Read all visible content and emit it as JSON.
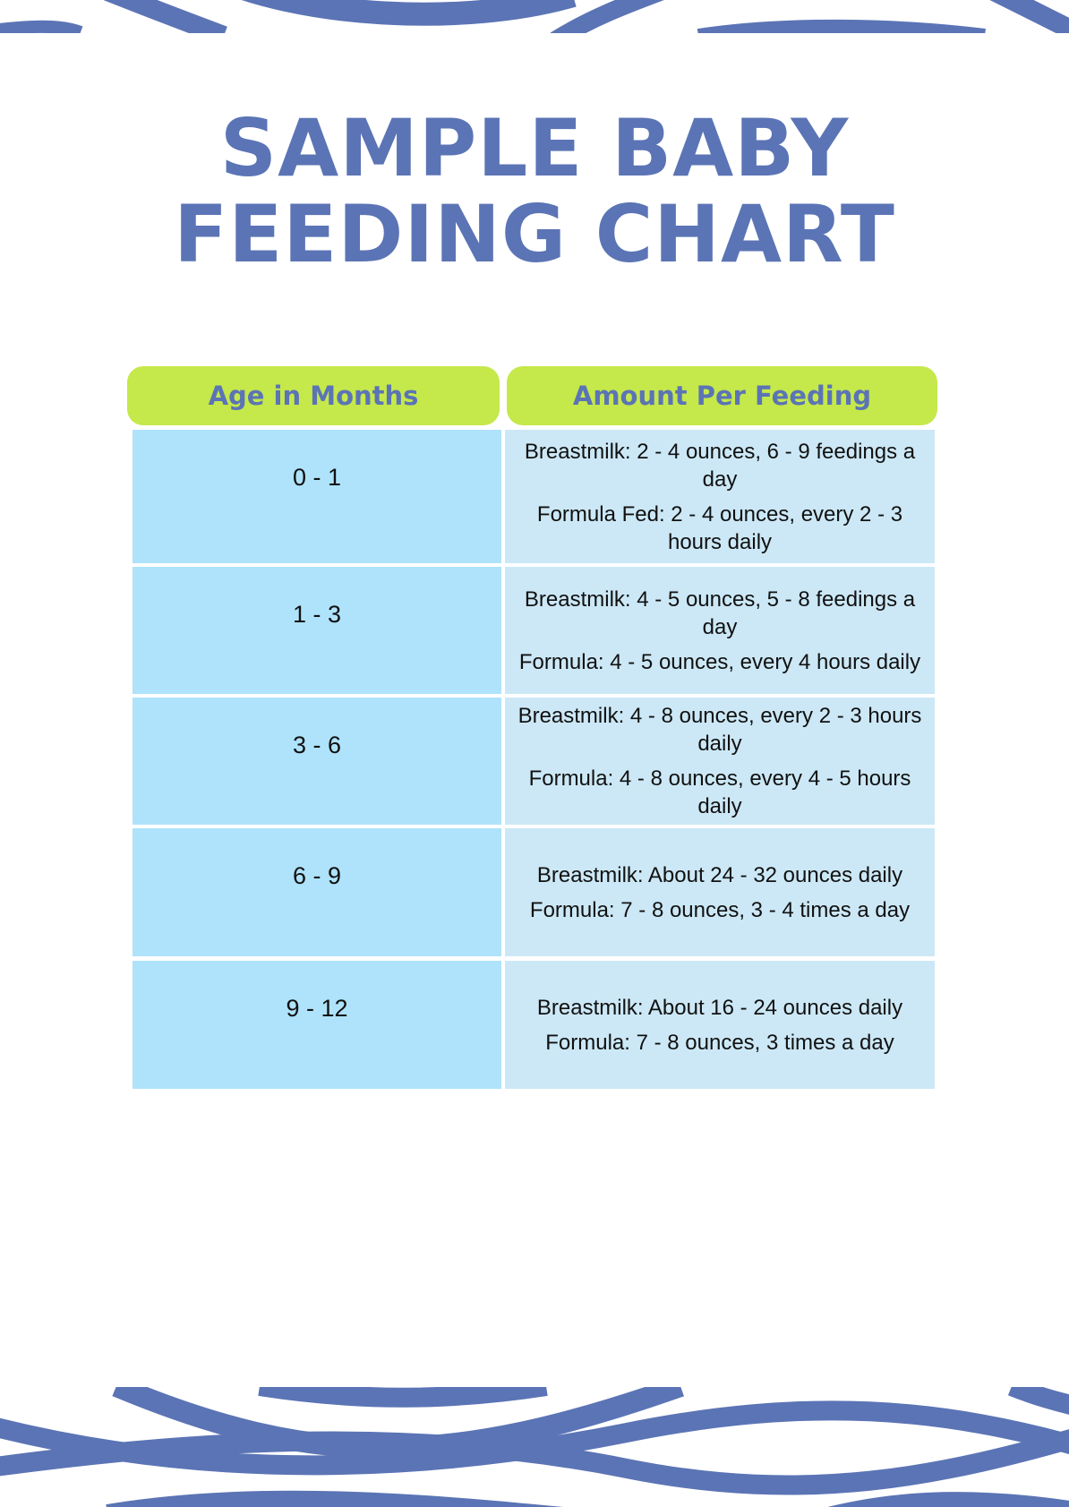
{
  "header": {
    "title_lines": [
      "SAMPLE BABY",
      "FEEDING CHART"
    ]
  },
  "table": {
    "headers": [
      "Age in Months",
      "Amount Per Feeding"
    ],
    "rows": [
      [
        "0 - 1",
        [
          "Breastmilk: 2 - 4 ounces, 6 - 9 feedings a day",
          "Formula Fed: 2 - 4 ounces, every 2 - 3 hours daily"
        ]
      ],
      [
        "1 - 3",
        [
          "Breastmilk: 4 - 5 ounces, 5 - 8 feedings a day",
          "Formula: 4 - 5 ounces, every 4 hours daily"
        ]
      ],
      [
        "3 - 6",
        [
          "Breastmilk: 4 - 8 ounces, every 2 - 3 hours daily",
          "Formula: 4 - 8 ounces, every 4 - 5 hours daily"
        ]
      ],
      [
        "6 - 9",
        [
          "Breastmilk: About 24 - 32 ounces daily",
          "Formula: 7 - 8 ounces, 3 - 4 times a day"
        ]
      ],
      [
        "9 - 12",
        [
          "Breastmilk: About 16 - 24 ounces daily",
          "Formula: 7 - 8 ounces, 3 times a day"
        ]
      ]
    ]
  }
}
